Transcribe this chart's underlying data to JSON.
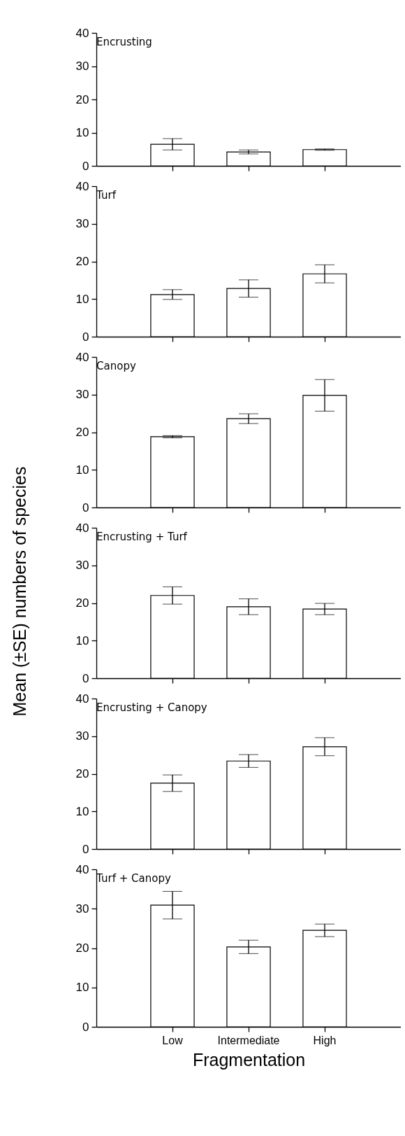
{
  "chart_data": [
    {
      "type": "bar",
      "title": "Encrusting",
      "categories": [
        null,
        null,
        null
      ],
      "values": [
        6.5,
        4.2,
        4.9
      ],
      "errors": [
        1.7,
        0.6,
        0.2
      ],
      "color": "#ffffff",
      "ylim": [
        0,
        40
      ],
      "yticks": [
        0,
        10,
        20,
        30,
        40
      ],
      "tick_labels": "y",
      "grid": false
    },
    {
      "type": "bar",
      "title": "Turf",
      "categories": [
        null,
        null,
        null
      ],
      "values": [
        11.2,
        12.8,
        16.7
      ],
      "errors": [
        1.3,
        2.3,
        2.4
      ],
      "color": "#ffffff",
      "ylim": [
        0,
        40
      ],
      "yticks": [
        0,
        10,
        20,
        30,
        40
      ],
      "tick_labels": "y",
      "grid": false
    },
    {
      "type": "bar",
      "title": "Canopy",
      "ylabel": "Mean (±SE) numbers of species",
      "categories": [
        null,
        null,
        null
      ],
      "values": [
        18.8,
        23.6,
        29.8
      ],
      "errors": [
        0.3,
        1.3,
        4.2
      ],
      "color": "#ffffff",
      "ylim": [
        0,
        40
      ],
      "yticks": [
        0,
        10,
        20,
        30,
        40
      ],
      "tick_labels": "y",
      "grid": false
    },
    {
      "type": "bar",
      "title": "Encrusting + Turf",
      "categories": [
        null,
        null,
        null
      ],
      "values": [
        22.0,
        19.0,
        18.4
      ],
      "errors": [
        2.3,
        2.1,
        1.5
      ],
      "color": "#ffffff",
      "ylim": [
        0,
        40
      ],
      "yticks": [
        0,
        10,
        20,
        30,
        40
      ],
      "tick_labels": "y",
      "grid": false
    },
    {
      "type": "bar",
      "title": "Encrusting + Canopy",
      "categories": [
        null,
        null,
        null
      ],
      "values": [
        17.5,
        23.4,
        27.2
      ],
      "errors": [
        2.2,
        1.7,
        2.4
      ],
      "color": "#ffffff",
      "ylim": [
        0,
        40
      ],
      "yticks": [
        0,
        10,
        20,
        30,
        40
      ],
      "tick_labels": "y",
      "grid": false
    },
    {
      "type": "bar",
      "title": "Turf + Canopy",
      "xlabel": "Fragmentation",
      "categories": [
        "Low",
        "Intermediate",
        "High"
      ],
      "values": [
        30.9,
        20.3,
        24.5
      ],
      "errors": [
        3.5,
        1.7,
        1.6
      ],
      "color": "#ffffff",
      "ylim": [
        0,
        40
      ],
      "yticks": [
        0,
        10,
        20,
        30,
        40
      ],
      "grid": false
    }
  ]
}
